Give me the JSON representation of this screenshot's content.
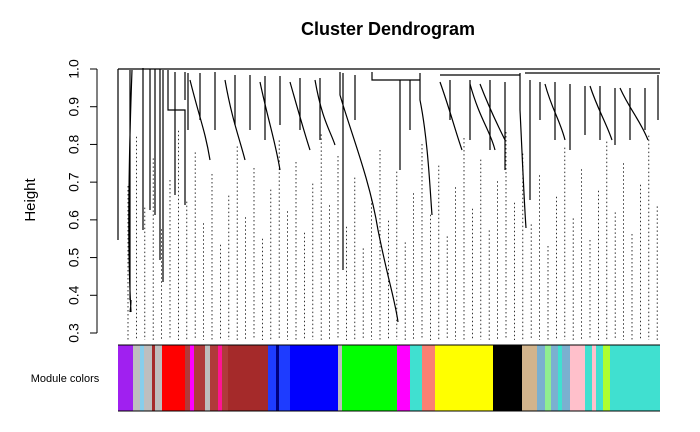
{
  "chart_data": {
    "type": "dendrogram",
    "title": "Cluster Dendrogram",
    "y_label": "Height",
    "color_bar_label": "Module colors",
    "ylim": [
      0.3,
      1.0
    ],
    "yticks": [
      0.3,
      0.4,
      0.5,
      0.6,
      0.7,
      0.8,
      0.9,
      {
        "value": 1,
        "label": "1.0"
      }
    ]
  }
}
